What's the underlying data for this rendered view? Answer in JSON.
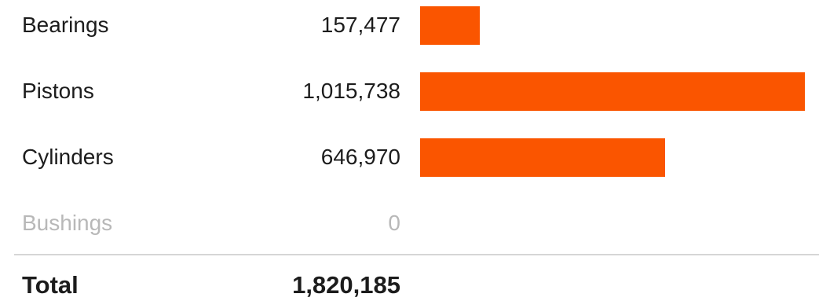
{
  "chart_data": {
    "type": "bar",
    "orientation": "horizontal",
    "categories": [
      "Bearings",
      "Pistons",
      "Cylinders",
      "Bushings"
    ],
    "values": [
      157477,
      1015738,
      646970,
      0
    ],
    "value_labels": [
      "157,477",
      "1,015,738",
      "646,970",
      "0"
    ],
    "xlim": [
      0,
      1015738
    ],
    "bar_color": "#fa5500",
    "total_label": "Total",
    "total_value": "1,820,185",
    "grid": false
  }
}
